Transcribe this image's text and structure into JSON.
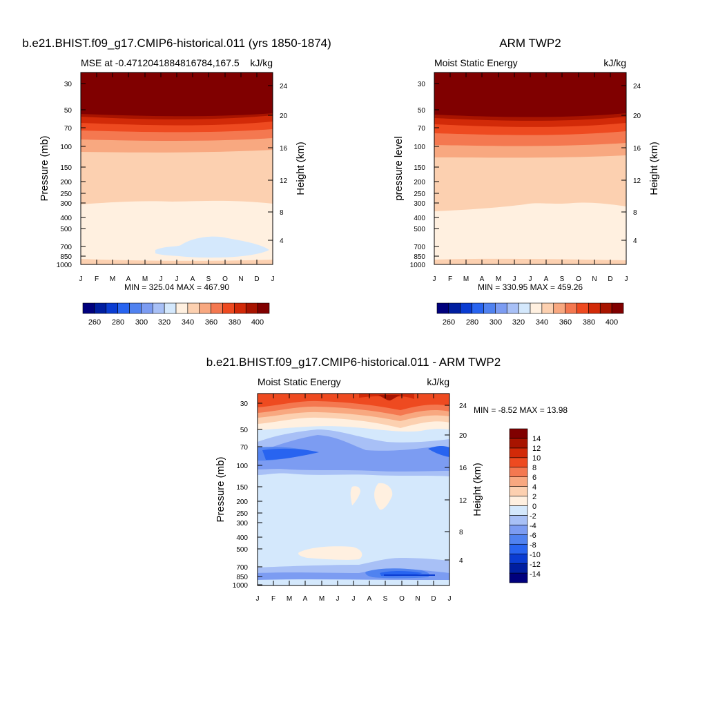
{
  "chart_data": [
    {
      "type": "heatmap",
      "title": "b.e21.BHIST.f09_g17.CMIP6-historical.011 (yrs 1850-1874)",
      "subtitle_left": "MSE at -0.4712041884816784,167.5",
      "subtitle_right": "kJ/kg",
      "xlabel": "",
      "ylabel": "Pressure (mb)",
      "ylabel_right": "Height (km)",
      "x_ticks": [
        "J",
        "F",
        "M",
        "A",
        "M",
        "J",
        "J",
        "A",
        "S",
        "O",
        "N",
        "D",
        "J"
      ],
      "y_ticks": [
        30,
        50,
        70,
        100,
        150,
        200,
        250,
        300,
        400,
        500,
        700,
        850,
        1000
      ],
      "y_right_ticks": [
        4,
        8,
        12,
        16,
        20,
        24
      ],
      "ylim": [
        1000,
        25
      ],
      "stats": "MIN = 325.04 MAX = 467.90",
      "colorbar": {
        "orientation": "horizontal",
        "levels": [
          250,
          260,
          270,
          280,
          290,
          300,
          310,
          320,
          330,
          340,
          350,
          360,
          370,
          380,
          390,
          400
        ],
        "labels": [
          "260",
          "280",
          "300",
          "320",
          "340",
          "360",
          "380",
          "400"
        ],
        "colors": [
          "#00007d",
          "#001ea0",
          "#0a3cd2",
          "#2864f0",
          "#5082f0",
          "#7c9cf2",
          "#a8c0f6",
          "#d4e8fc",
          "#fff0e0",
          "#fcd0b0",
          "#f8a880",
          "#f47850",
          "#ee4a20",
          "#d22a08",
          "#a81400",
          "#800000"
        ]
      },
      "bands_by_pressure_mb": [
        {
          "range": [
            1000,
            935
          ],
          "class": "330-340"
        },
        {
          "range": [
            935,
            300
          ],
          "class": "330-340"
        },
        {
          "range": [
            300,
            120
          ],
          "class": "340-350"
        },
        {
          "range": [
            120,
            92
          ],
          "class": "350-360"
        },
        {
          "range": [
            92,
            80
          ],
          "class": "360-370"
        },
        {
          "range": [
            80,
            70
          ],
          "class": "370-380"
        },
        {
          "range": [
            70,
            62
          ],
          "class": "380-390"
        },
        {
          "range": [
            62,
            55
          ],
          "class": "390-400"
        },
        {
          "range": [
            55,
            25
          ],
          "class": ">400"
        }
      ],
      "features": [
        {
          "months": "May-Dec",
          "pressure_mb": [
            620,
            820
          ],
          "class": "320-330"
        }
      ]
    },
    {
      "type": "heatmap",
      "title": "ARM TWP2",
      "subtitle_left": "Moist Static Energy",
      "subtitle_right": "kJ/kg",
      "xlabel": "",
      "ylabel": "pressure level",
      "ylabel_right": "Height (km)",
      "x_ticks": [
        "J",
        "F",
        "M",
        "A",
        "M",
        "J",
        "J",
        "A",
        "S",
        "O",
        "N",
        "D",
        "J"
      ],
      "y_ticks": [
        30,
        50,
        70,
        100,
        150,
        200,
        250,
        300,
        400,
        500,
        700,
        850,
        1000
      ],
      "y_right_ticks": [
        4,
        8,
        12,
        16,
        20,
        24
      ],
      "ylim": [
        1000,
        25
      ],
      "stats": "MIN = 330.95 MAX = 459.26",
      "colorbar": {
        "orientation": "horizontal",
        "levels": [
          250,
          260,
          270,
          280,
          290,
          300,
          310,
          320,
          330,
          340,
          350,
          360,
          370,
          380,
          390,
          400
        ],
        "labels": [
          "260",
          "280",
          "300",
          "320",
          "340",
          "360",
          "380",
          "400"
        ],
        "colors": [
          "#00007d",
          "#001ea0",
          "#0a3cd2",
          "#2864f0",
          "#5082f0",
          "#7c9cf2",
          "#a8c0f6",
          "#d4e8fc",
          "#fff0e0",
          "#fcd0b0",
          "#f8a880",
          "#f47850",
          "#ee4a20",
          "#d22a08",
          "#a81400",
          "#800000"
        ]
      },
      "bands_by_pressure_mb": [
        {
          "range": [
            1000,
            930
          ],
          "class": "340-350"
        },
        {
          "range": [
            930,
            380
          ],
          "class": "330-340"
        },
        {
          "range": [
            380,
            125
          ],
          "class": "340-350"
        },
        {
          "range": [
            125,
            100
          ],
          "class": "350-360"
        },
        {
          "range": [
            100,
            85
          ],
          "class": "360-370"
        },
        {
          "range": [
            85,
            72
          ],
          "class": "370-380"
        },
        {
          "range": [
            72,
            62
          ],
          "class": "380-390"
        },
        {
          "range": [
            62,
            56
          ],
          "class": "390-400"
        },
        {
          "range": [
            56,
            25
          ],
          "class": ">400"
        }
      ]
    },
    {
      "type": "heatmap",
      "title": "b.e21.BHIST.f09_g17.CMIP6-historical.011 - ARM TWP2",
      "subtitle_left": "Moist Static Energy",
      "subtitle_right": "kJ/kg",
      "xlabel": "",
      "ylabel": "Pressure (mb)",
      "ylabel_right": "Height (km)",
      "x_ticks": [
        "J",
        "F",
        "M",
        "A",
        "M",
        "J",
        "J",
        "A",
        "S",
        "O",
        "N",
        "D",
        "J"
      ],
      "y_ticks": [
        30,
        50,
        70,
        100,
        150,
        200,
        250,
        300,
        400,
        500,
        700,
        850,
        1000
      ],
      "y_right_ticks": [
        4,
        8,
        12,
        16,
        20,
        24
      ],
      "ylim": [
        1000,
        25
      ],
      "stats": "MIN =  -8.52 MAX =  13.98",
      "colorbar": {
        "orientation": "vertical",
        "levels": [
          -16,
          -14,
          -12,
          -10,
          -8,
          -6,
          -4,
          -2,
          0,
          2,
          4,
          6,
          8,
          10,
          12,
          14,
          16
        ],
        "labels": [
          "14",
          "12",
          "10",
          "8",
          "6",
          "4",
          "2",
          "0",
          "-2",
          "-4",
          "-6",
          "-8",
          "-10",
          "-12",
          "-14"
        ],
        "colors": [
          "#00007d",
          "#001ea0",
          "#0a3cd2",
          "#2864f0",
          "#5082f0",
          "#7c9cf2",
          "#a8c0f6",
          "#d4e8fc",
          "#fff0e0",
          "#fcd0b0",
          "#f8a880",
          "#f47850",
          "#ee4a20",
          "#d22a08",
          "#a81400",
          "#800000"
        ]
      },
      "bands_by_pressure_mb": [
        {
          "range": [
            1000,
            930
          ],
          "class": "-2-0"
        },
        {
          "range": [
            930,
            820
          ],
          "class": "-6--4"
        },
        {
          "range": [
            820,
            700
          ],
          "class": "-4--2"
        },
        {
          "range": [
            700,
            110
          ],
          "class": "-2-0"
        },
        {
          "range": [
            110,
            90
          ],
          "class": "-4--2"
        },
        {
          "range": [
            90,
            60
          ],
          "class": "-6--4"
        },
        {
          "range": [
            60,
            50
          ],
          "class": "-2-0"
        },
        {
          "range": [
            50,
            45
          ],
          "class": "2-4"
        },
        {
          "range": [
            45,
            38
          ],
          "class": "4-6"
        },
        {
          "range": [
            38,
            32
          ],
          "class": "6-8"
        },
        {
          "range": [
            32,
            25
          ],
          "class": "8-10"
        }
      ],
      "features": [
        {
          "months": "Mar-Jun",
          "pressure_mb": [
            500,
            560
          ],
          "class": "0-2"
        },
        {
          "months": "Aug-Oct",
          "pressure_mb": [
            830,
            880
          ],
          "class": "-8--6"
        },
        {
          "months": "Jan-Mar",
          "pressure_mb": [
            70,
            90
          ],
          "class": "-8--6"
        }
      ]
    }
  ]
}
